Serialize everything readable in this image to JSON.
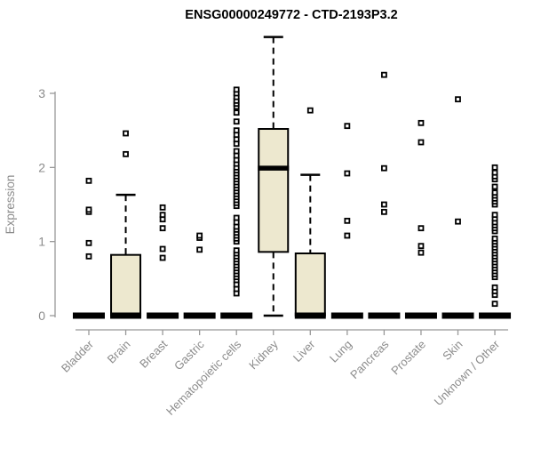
{
  "chart_data": {
    "type": "boxplot",
    "title": "ENSG00000249772 - CTD-2193P3.2",
    "ylabel": "Expression",
    "xlabel": "",
    "ylim": [
      0,
      3.8
    ],
    "yticks": [
      "0",
      "1",
      "2",
      "3"
    ],
    "grid": false,
    "legend": "none",
    "colors": {
      "box_fill": "#EDE8CF",
      "box_stroke": "#000000",
      "median": "#000000",
      "whisker": "#000000",
      "outlier_stroke": "#000000",
      "outlier_fill": "#ffffff",
      "axis": "#999999",
      "tick_label": "#8c8c8c",
      "title": "#000000"
    },
    "categories": [
      "Bladder",
      "Brain",
      "Breast",
      "Gastric",
      "Hematopoietic cells",
      "Kidney",
      "Liver",
      "Lung",
      "Pancreas",
      "Prostate",
      "Skin",
      "Unknown / Other"
    ],
    "series": [
      {
        "category": "Bladder",
        "whisker_low": 0,
        "q1": 0,
        "median": 0,
        "q3": 0,
        "whisker_high": 0,
        "outliers": [
          0.8,
          0.98,
          1.4,
          1.43,
          1.82
        ]
      },
      {
        "category": "Brain",
        "whisker_low": 0,
        "q1": 0,
        "median": 0,
        "q3": 0.82,
        "whisker_high": 1.63,
        "outliers": [
          2.18,
          2.46
        ]
      },
      {
        "category": "Breast",
        "whisker_low": 0,
        "q1": 0,
        "median": 0,
        "q3": 0,
        "whisker_high": 0,
        "outliers": [
          0.78,
          0.9,
          1.18,
          1.3,
          1.36,
          1.46
        ]
      },
      {
        "category": "Gastric",
        "whisker_low": 0,
        "q1": 0,
        "median": 0,
        "q3": 0,
        "whisker_high": 0,
        "outliers": [
          0.89,
          1.05,
          1.08
        ]
      },
      {
        "category": "Hematopoietic cells",
        "whisker_low": 0,
        "q1": 0,
        "median": 0,
        "q3": 0,
        "whisker_high": 0,
        "outliers": [
          0.3,
          0.36,
          0.42,
          0.48,
          0.52,
          0.56,
          0.6,
          0.64,
          0.68,
          0.72,
          0.76,
          0.8,
          0.84,
          0.88,
          1.0,
          1.04,
          1.08,
          1.12,
          1.16,
          1.2,
          1.26,
          1.32,
          1.48,
          1.52,
          1.56,
          1.6,
          1.64,
          1.68,
          1.72,
          1.76,
          1.8,
          1.84,
          1.88,
          1.92,
          1.96,
          2.0,
          2.05,
          2.1,
          2.16,
          2.22,
          2.32,
          2.38,
          2.44,
          2.5,
          2.62,
          2.74,
          2.82,
          2.86,
          2.9,
          2.95,
          3.0,
          3.05
        ]
      },
      {
        "category": "Kidney",
        "whisker_low": 0,
        "q1": 0.86,
        "median": 1.99,
        "q3": 2.52,
        "whisker_high": 3.76,
        "outliers": []
      },
      {
        "category": "Liver",
        "whisker_low": 0,
        "q1": 0,
        "median": 0,
        "q3": 0.84,
        "whisker_high": 1.9,
        "outliers": [
          2.77
        ]
      },
      {
        "category": "Lung",
        "whisker_low": 0,
        "q1": 0,
        "median": 0,
        "q3": 0,
        "whisker_high": 0,
        "outliers": [
          1.08,
          1.28,
          1.92,
          2.56
        ]
      },
      {
        "category": "Pancreas",
        "whisker_low": 0,
        "q1": 0,
        "median": 0,
        "q3": 0,
        "whisker_high": 0,
        "outliers": [
          1.4,
          1.5,
          1.99,
          3.25
        ]
      },
      {
        "category": "Prostate",
        "whisker_low": 0,
        "q1": 0,
        "median": 0,
        "q3": 0,
        "whisker_high": 0,
        "outliers": [
          0.85,
          0.94,
          1.18,
          2.34,
          2.6
        ]
      },
      {
        "category": "Skin",
        "whisker_low": 0,
        "q1": 0,
        "median": 0,
        "q3": 0,
        "whisker_high": 0,
        "outliers": [
          1.27,
          2.92
        ]
      },
      {
        "category": "Unknown / Other",
        "whisker_low": 0,
        "q1": 0,
        "median": 0,
        "q3": 0,
        "whisker_high": 0,
        "outliers": [
          0.16,
          0.28,
          0.33,
          0.38,
          0.52,
          0.56,
          0.6,
          0.64,
          0.68,
          0.72,
          0.76,
          0.8,
          0.84,
          0.88,
          0.92,
          0.96,
          1.0,
          1.04,
          1.14,
          1.18,
          1.22,
          1.26,
          1.31,
          1.36,
          1.5,
          1.54,
          1.58,
          1.62,
          1.66,
          1.74,
          1.84,
          1.88,
          1.93,
          2.0
        ]
      }
    ]
  }
}
